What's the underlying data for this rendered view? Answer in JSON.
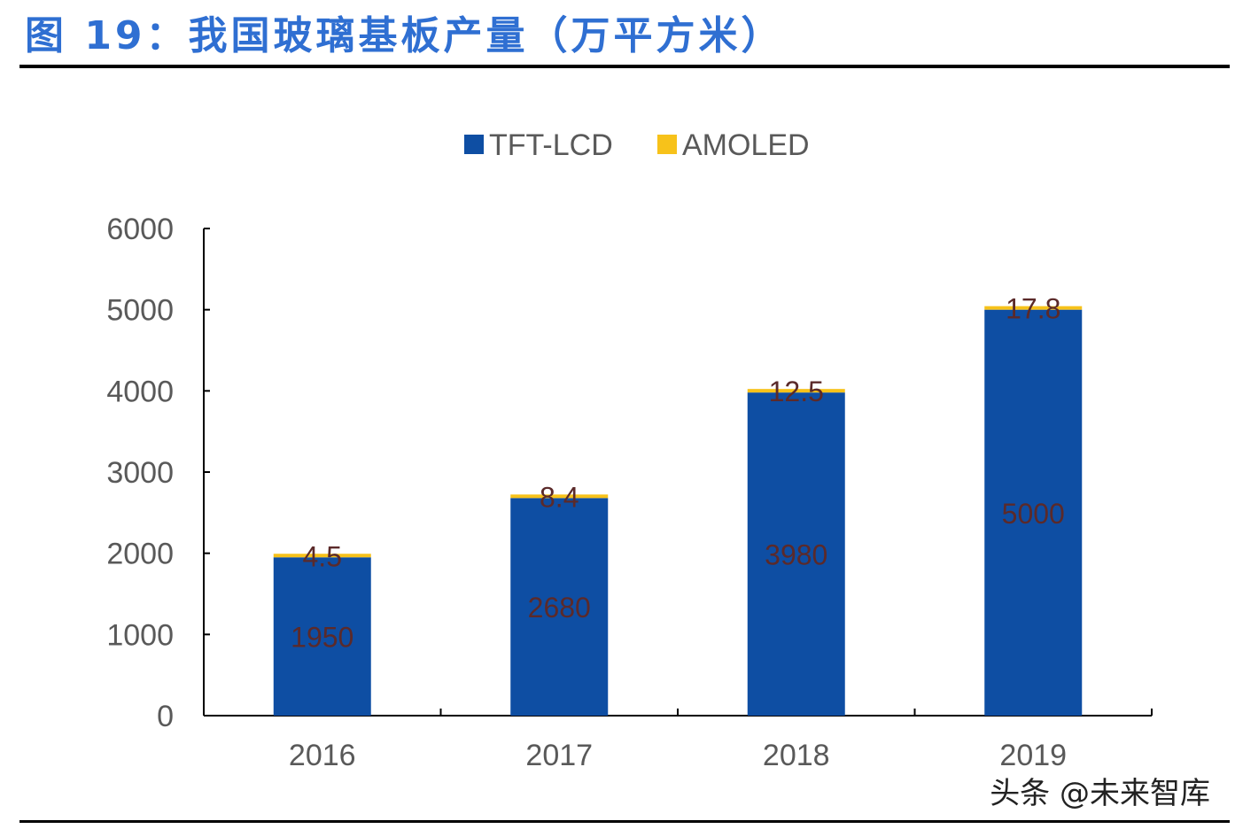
{
  "title": "图 19：我国玻璃基板产量（万平方米）",
  "watermark": "头条 @未来智库",
  "chart_data": {
    "type": "bar",
    "stacked": true,
    "categories": [
      "2016",
      "2017",
      "2018",
      "2019"
    ],
    "series": [
      {
        "name": "TFT-LCD",
        "values": [
          1950,
          2680,
          3980,
          5000
        ],
        "color": "#0e4ea3"
      },
      {
        "name": "AMOLED",
        "values": [
          4.5,
          8.4,
          12.5,
          17.8
        ],
        "color": "#f7c21a"
      }
    ],
    "data_labels": [
      [
        "1950",
        "2680",
        "3980",
        "5000"
      ],
      [
        "4.5",
        "8.4",
        "12.5",
        "17.8"
      ]
    ],
    "yticks": [
      "0",
      "1000",
      "2000",
      "3000",
      "4000",
      "5000",
      "6000"
    ],
    "ylim": [
      0,
      6000
    ],
    "legend": "top-center",
    "grid": false,
    "label_color": "#5b2a2a"
  }
}
